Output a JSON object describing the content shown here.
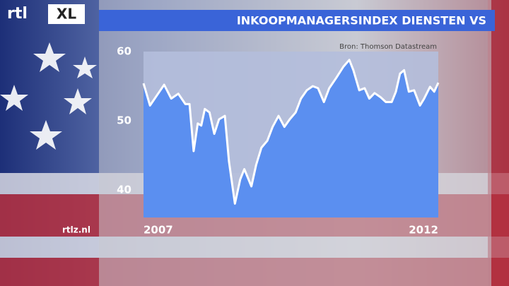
{
  "brand": [
    "rtl",
    "XL"
  ],
  "site": "rtlz.nl",
  "chart_data": {
    "type": "area",
    "title": "INKOOPMANAGERSINDEX DIENSTEN VS",
    "source": "Bron: Thomson Datastream",
    "x": [
      2007.0,
      2007.11,
      2007.23,
      2007.35,
      2007.47,
      2007.59,
      2007.71,
      2007.78,
      2007.85,
      2007.92,
      2007.98,
      2008.04,
      2008.12,
      2008.2,
      2008.28,
      2008.38,
      2008.45,
      2008.55,
      2008.64,
      2008.71,
      2008.83,
      2008.91,
      2009.0,
      2009.1,
      2009.19,
      2009.29,
      2009.39,
      2009.48,
      2009.58,
      2009.67,
      2009.77,
      2009.87,
      2009.96,
      2010.06,
      2010.15,
      2010.27,
      2010.39,
      2010.49,
      2010.56,
      2010.66,
      2010.75,
      2010.83,
      2010.92,
      2011.02,
      2011.11,
      2011.21,
      2011.28,
      2011.35,
      2011.42,
      2011.5,
      2011.59,
      2011.69,
      2011.76,
      2011.86,
      2011.93,
      2012.0
    ],
    "values": [
      55.4,
      52.2,
      53.7,
      55.2,
      53.2,
      53.9,
      52.4,
      52.4,
      45.6,
      49.6,
      49.3,
      51.7,
      51.2,
      48.1,
      50.2,
      50.7,
      44.1,
      38.0,
      41.5,
      43.0,
      40.5,
      43.6,
      46.1,
      47.1,
      49.1,
      50.7,
      49.1,
      50.2,
      51.2,
      53.2,
      54.4,
      55.0,
      54.7,
      52.7,
      54.7,
      56.2,
      57.8,
      58.8,
      57.3,
      54.4,
      54.7,
      53.2,
      54.0,
      53.4,
      52.7,
      52.7,
      54.2,
      56.8,
      57.3,
      54.2,
      54.4,
      52.2,
      53.2,
      54.9,
      54.2,
      55.5
    ],
    "fill": "#5b8ff0",
    "line_color": "#ffffff",
    "xlim": [
      2007,
      2012
    ],
    "xticks": [
      2007,
      2012
    ],
    "ylim": [
      36,
      60
    ],
    "yticks": [
      40,
      50,
      60
    ]
  }
}
